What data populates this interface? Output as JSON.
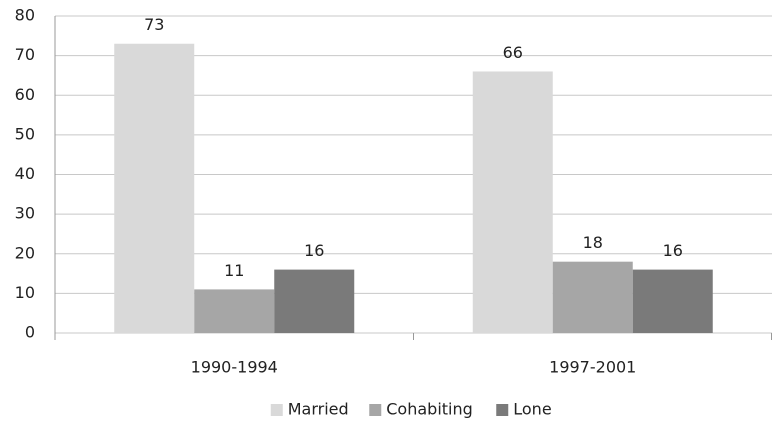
{
  "chart_data": {
    "type": "bar",
    "categories": [
      "1990-1994",
      "1997-2001"
    ],
    "series": [
      {
        "name": "Married",
        "color": "#d9d9d9",
        "values": [
          73,
          66
        ]
      },
      {
        "name": "Cohabiting",
        "color": "#a6a6a6",
        "values": [
          11,
          18
        ]
      },
      {
        "name": "Lone",
        "color": "#7a7a7a",
        "values": [
          16,
          16
        ]
      }
    ],
    "ylim": [
      0,
      80
    ],
    "yticks": [
      0,
      10,
      20,
      30,
      40,
      50,
      60,
      70,
      80
    ],
    "grid": true,
    "legend": "bottom"
  }
}
